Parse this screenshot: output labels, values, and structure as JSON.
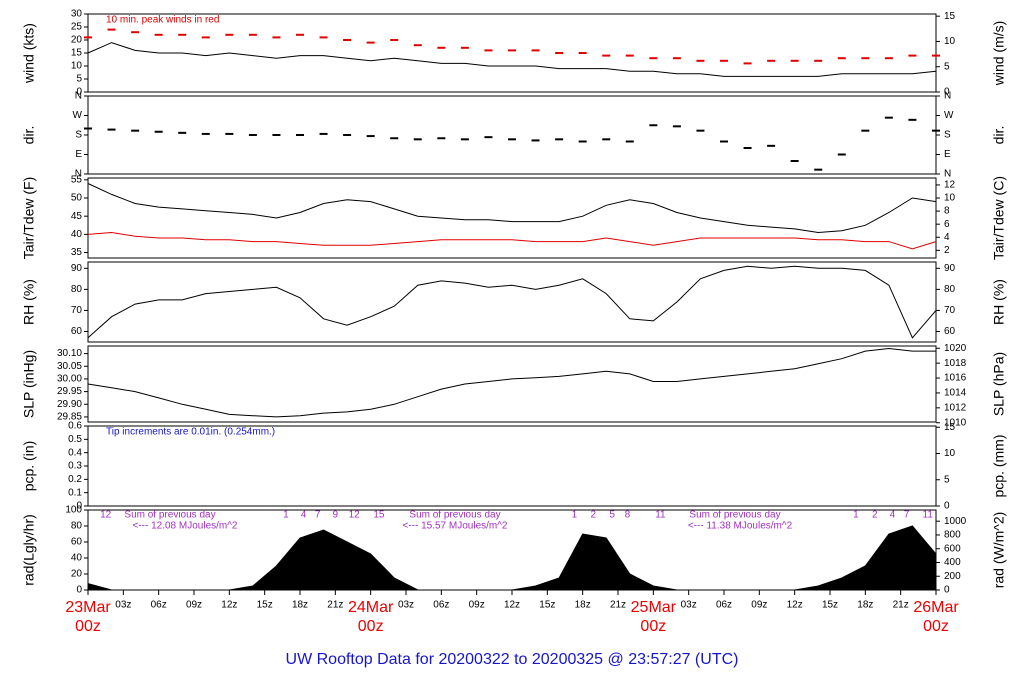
{
  "title": "UW Rooftop Data for 20200322  to  20200325 @ 23:57:27  (UTC)",
  "x_axis": {
    "xlim": [
      0,
      72
    ],
    "x": [
      0,
      2,
      4,
      6,
      8,
      10,
      12,
      14,
      16,
      18,
      20,
      22,
      24,
      26,
      28,
      30,
      32,
      34,
      36,
      38,
      40,
      42,
      44,
      46,
      48,
      50,
      52,
      54,
      56,
      58,
      60,
      62,
      64,
      66,
      68,
      70,
      72
    ],
    "xticks": [
      {
        "value": 0,
        "label": "23Mar",
        "sub": "00z"
      },
      {
        "value": 3,
        "label": "03z"
      },
      {
        "value": 6,
        "label": "06z"
      },
      {
        "value": 9,
        "label": "09z"
      },
      {
        "value": 12,
        "label": "12z"
      },
      {
        "value": 15,
        "label": "15z"
      },
      {
        "value": 18,
        "label": "18z"
      },
      {
        "value": 21,
        "label": "21z"
      },
      {
        "value": 24,
        "label": "24Mar",
        "sub": "00z"
      },
      {
        "value": 27,
        "label": "03z"
      },
      {
        "value": 30,
        "label": "06z"
      },
      {
        "value": 33,
        "label": "09z"
      },
      {
        "value": 36,
        "label": "12z"
      },
      {
        "value": 39,
        "label": "15z"
      },
      {
        "value": 42,
        "label": "18z"
      },
      {
        "value": 45,
        "label": "21z"
      },
      {
        "value": 48,
        "label": "25Mar",
        "sub": "00z"
      },
      {
        "value": 51,
        "label": "03z"
      },
      {
        "value": 54,
        "label": "06z"
      },
      {
        "value": 57,
        "label": "09z"
      },
      {
        "value": 60,
        "label": "12z"
      },
      {
        "value": 63,
        "label": "15z"
      },
      {
        "value": 66,
        "label": "18z"
      },
      {
        "value": 69,
        "label": "21z"
      },
      {
        "value": 72,
        "label": "26Mar",
        "sub": "00z"
      }
    ]
  },
  "chart_data": [
    {
      "type": "line",
      "ylabel": "wind (kts)",
      "y2label": "wind (m/s)",
      "note": "10 min. peak winds in red",
      "note_color": "#e00000",
      "ylim": [
        0,
        30
      ],
      "yticks": [
        0,
        5,
        10,
        15,
        20,
        25,
        30
      ],
      "y2lim": [
        0,
        15.43
      ],
      "y2ticks": [
        0,
        5,
        10,
        15
      ],
      "series": [
        {
          "name": "wind",
          "color": "#000000",
          "style": "line",
          "values": [
            15,
            19,
            16,
            15,
            15,
            14,
            15,
            14,
            13,
            14,
            14,
            13,
            12,
            13,
            12,
            11,
            11,
            10,
            10,
            10,
            9,
            9,
            9,
            8,
            8,
            7,
            7,
            6,
            6,
            6,
            6,
            6,
            7,
            7,
            7,
            7,
            8
          ]
        },
        {
          "name": "peak",
          "color": "#e00000",
          "style": "dash",
          "values": [
            21,
            24,
            23,
            22,
            22,
            21,
            22,
            22,
            21,
            22,
            21,
            20,
            19,
            20,
            18,
            17,
            17,
            16,
            16,
            16,
            15,
            15,
            14,
            14,
            13,
            13,
            12,
            12,
            11,
            12,
            12,
            12,
            13,
            13,
            13,
            14,
            14
          ]
        }
      ]
    },
    {
      "type": "scatter",
      "ylabel": "dir.",
      "y2label": "dir.",
      "ylim": [
        0,
        360
      ],
      "yticks": [
        {
          "value": 0,
          "label": "N"
        },
        {
          "value": 90,
          "label": "E"
        },
        {
          "value": 180,
          "label": "S"
        },
        {
          "value": 270,
          "label": "W"
        },
        {
          "value": 360,
          "label": "N"
        }
      ],
      "y2lim": [
        0,
        360
      ],
      "y2ticks": [
        {
          "value": 0,
          "label": "N"
        },
        {
          "value": 90,
          "label": "E"
        },
        {
          "value": 180,
          "label": "S"
        },
        {
          "value": 270,
          "label": "W"
        },
        {
          "value": 360,
          "label": "N"
        }
      ],
      "series": [
        {
          "name": "dir",
          "color": "#000000",
          "style": "dash",
          "values": [
            210,
            205,
            200,
            195,
            190,
            185,
            185,
            180,
            180,
            180,
            185,
            180,
            175,
            165,
            160,
            165,
            160,
            170,
            160,
            155,
            160,
            150,
            160,
            150,
            225,
            220,
            200,
            150,
            120,
            130,
            60,
            20,
            90,
            200,
            260,
            250,
            200
          ]
        }
      ]
    },
    {
      "type": "line",
      "ylabel": "Tair/Tdew (F)",
      "y2label": "Tair/Tdew (C)",
      "ylim": [
        33.5,
        55.5
      ],
      "yticks": [
        35,
        40,
        45,
        50,
        55
      ],
      "y2lim": [
        0.83,
        13.06
      ],
      "y2ticks": [
        2,
        4,
        6,
        8,
        10,
        12
      ],
      "series": [
        {
          "name": "Tair",
          "color": "#000000",
          "style": "line",
          "values": [
            54,
            51,
            48.5,
            47.5,
            47,
            46.5,
            46,
            45.5,
            44.5,
            46,
            48.5,
            49.5,
            49,
            47,
            45,
            44.5,
            44,
            44,
            43.5,
            43.5,
            43.5,
            45,
            48,
            49.5,
            48.5,
            46,
            44.5,
            43.5,
            42.5,
            42,
            41.5,
            40.5,
            41,
            42.5,
            46,
            50,
            49
          ]
        },
        {
          "name": "Tdew",
          "color": "#e00000",
          "style": "line",
          "values": [
            40,
            40.5,
            39.5,
            39,
            39,
            38.5,
            38.5,
            38,
            38,
            37.5,
            37,
            37,
            37,
            37.5,
            38,
            38.5,
            38.5,
            38.5,
            38.5,
            38,
            38,
            38,
            39,
            38,
            37,
            38,
            39,
            39,
            39,
            39,
            39,
            38.5,
            38.5,
            38,
            38,
            36,
            38
          ]
        }
      ]
    },
    {
      "type": "line",
      "ylabel": "RH (%)",
      "y2label": "RH (%)",
      "ylim": [
        55,
        93
      ],
      "yticks": [
        60,
        70,
        80,
        90
      ],
      "y2lim": [
        55,
        93
      ],
      "y2ticks": [
        60,
        70,
        80,
        90
      ],
      "series": [
        {
          "name": "RH",
          "color": "#000000",
          "style": "line",
          "values": [
            57,
            67,
            73,
            75,
            75,
            78,
            79,
            80,
            81,
            76,
            66,
            63,
            67,
            72,
            82,
            84,
            83,
            81,
            82,
            80,
            82,
            85,
            78,
            66,
            65,
            74,
            85,
            89,
            91,
            90,
            91,
            90,
            90,
            89,
            82,
            57,
            70
          ]
        }
      ]
    },
    {
      "type": "line",
      "ylabel": "SLP (inHg)",
      "y2label": "SLP (hPa)",
      "ylim": [
        29.83,
        30.13
      ],
      "yticks": [
        {
          "value": 29.85,
          "label": "29.85"
        },
        {
          "value": 29.9,
          "label": "29.90"
        },
        {
          "value": 29.95,
          "label": "29.95"
        },
        {
          "value": 30,
          "label": "30.00"
        },
        {
          "value": 30.05,
          "label": "30.05"
        },
        {
          "value": 30.1,
          "label": "30.10"
        }
      ],
      "y2lim": [
        1010.1,
        1020.3
      ],
      "y2ticks": [
        1010,
        1012,
        1014,
        1016,
        1018,
        1020
      ],
      "series": [
        {
          "name": "SLP",
          "color": "#000000",
          "style": "line",
          "values": [
            29.98,
            29.965,
            29.95,
            29.925,
            29.9,
            29.88,
            29.86,
            29.855,
            29.85,
            29.855,
            29.865,
            29.87,
            29.88,
            29.9,
            29.93,
            29.96,
            29.98,
            29.99,
            30,
            30.005,
            30.01,
            30.02,
            30.03,
            30.02,
            29.99,
            29.99,
            30,
            30.01,
            30.02,
            30.03,
            30.04,
            30.06,
            30.08,
            30.11,
            30.12,
            30.11,
            30.11
          ]
        }
      ]
    },
    {
      "type": "line",
      "ylabel": "pcp. (in)",
      "y2label": "pcp. (mm)",
      "note": "Tip increments are 0.01in. (0.254mm.)",
      "note_color": "#1515d0",
      "ylim": [
        0,
        0.6
      ],
      "yticks": [
        0,
        0.1,
        0.2,
        0.3,
        0.4,
        0.5,
        0.6
      ],
      "y2lim": [
        0,
        15.24
      ],
      "y2ticks": [
        0,
        5,
        10,
        15
      ],
      "series": [
        {
          "name": "pcp",
          "color": "#000000",
          "style": "line",
          "values": [
            0,
            0,
            0,
            0,
            0,
            0,
            0,
            0,
            0,
            0,
            0,
            0,
            0,
            0,
            0,
            0,
            0,
            0,
            0,
            0,
            0,
            0,
            0,
            0,
            0,
            0,
            0,
            0,
            0,
            0,
            0,
            0,
            0,
            0,
            0,
            0,
            0
          ]
        }
      ]
    },
    {
      "type": "area",
      "ylabel": "rad(Lgly/hr)",
      "y2label": "rad (W/m^2)",
      "ylim": [
        0,
        100
      ],
      "yticks": [
        0,
        20,
        40,
        60,
        80,
        100
      ],
      "y2lim": [
        0,
        1163
      ],
      "y2ticks": [
        0,
        200,
        400,
        600,
        800,
        1000
      ],
      "daily_sums": [
        {
          "title": "Sum of previous day",
          "text": "<--- 12.08 MJoules/m^2"
        },
        {
          "title": "Sum of previous day",
          "text": "<--- 15.57 MJoules/m^2"
        },
        {
          "title": "Sum of previous day",
          "text": "<--- 11.38 MJoules/m^2"
        }
      ],
      "hour_marks": [
        {
          "x": 1.5,
          "label": "12"
        },
        {
          "x": 16.8,
          "label": "1"
        },
        {
          "x": 18.3,
          "label": "4"
        },
        {
          "x": 19.5,
          "label": "7"
        },
        {
          "x": 21,
          "label": "9"
        },
        {
          "x": 22.6,
          "label": "12"
        },
        {
          "x": 24.7,
          "label": "15"
        },
        {
          "x": 41.3,
          "label": "1"
        },
        {
          "x": 42.9,
          "label": "2"
        },
        {
          "x": 44.5,
          "label": "5"
        },
        {
          "x": 45.8,
          "label": "8"
        },
        {
          "x": 48.6,
          "label": "11"
        },
        {
          "x": 65.2,
          "label": "1"
        },
        {
          "x": 66.8,
          "label": "2"
        },
        {
          "x": 68.3,
          "label": "4"
        },
        {
          "x": 69.5,
          "label": "7"
        },
        {
          "x": 71.3,
          "label": "11"
        }
      ],
      "series": [
        {
          "name": "rad",
          "color": "#000000",
          "style": "area",
          "values": [
            8,
            0,
            0,
            0,
            0,
            0,
            0,
            5,
            30,
            65,
            75,
            60,
            45,
            15,
            0,
            0,
            0,
            0,
            0,
            5,
            15,
            70,
            65,
            20,
            5,
            0,
            0,
            0,
            0,
            0,
            0,
            5,
            15,
            30,
            70,
            80,
            45
          ]
        }
      ]
    }
  ]
}
